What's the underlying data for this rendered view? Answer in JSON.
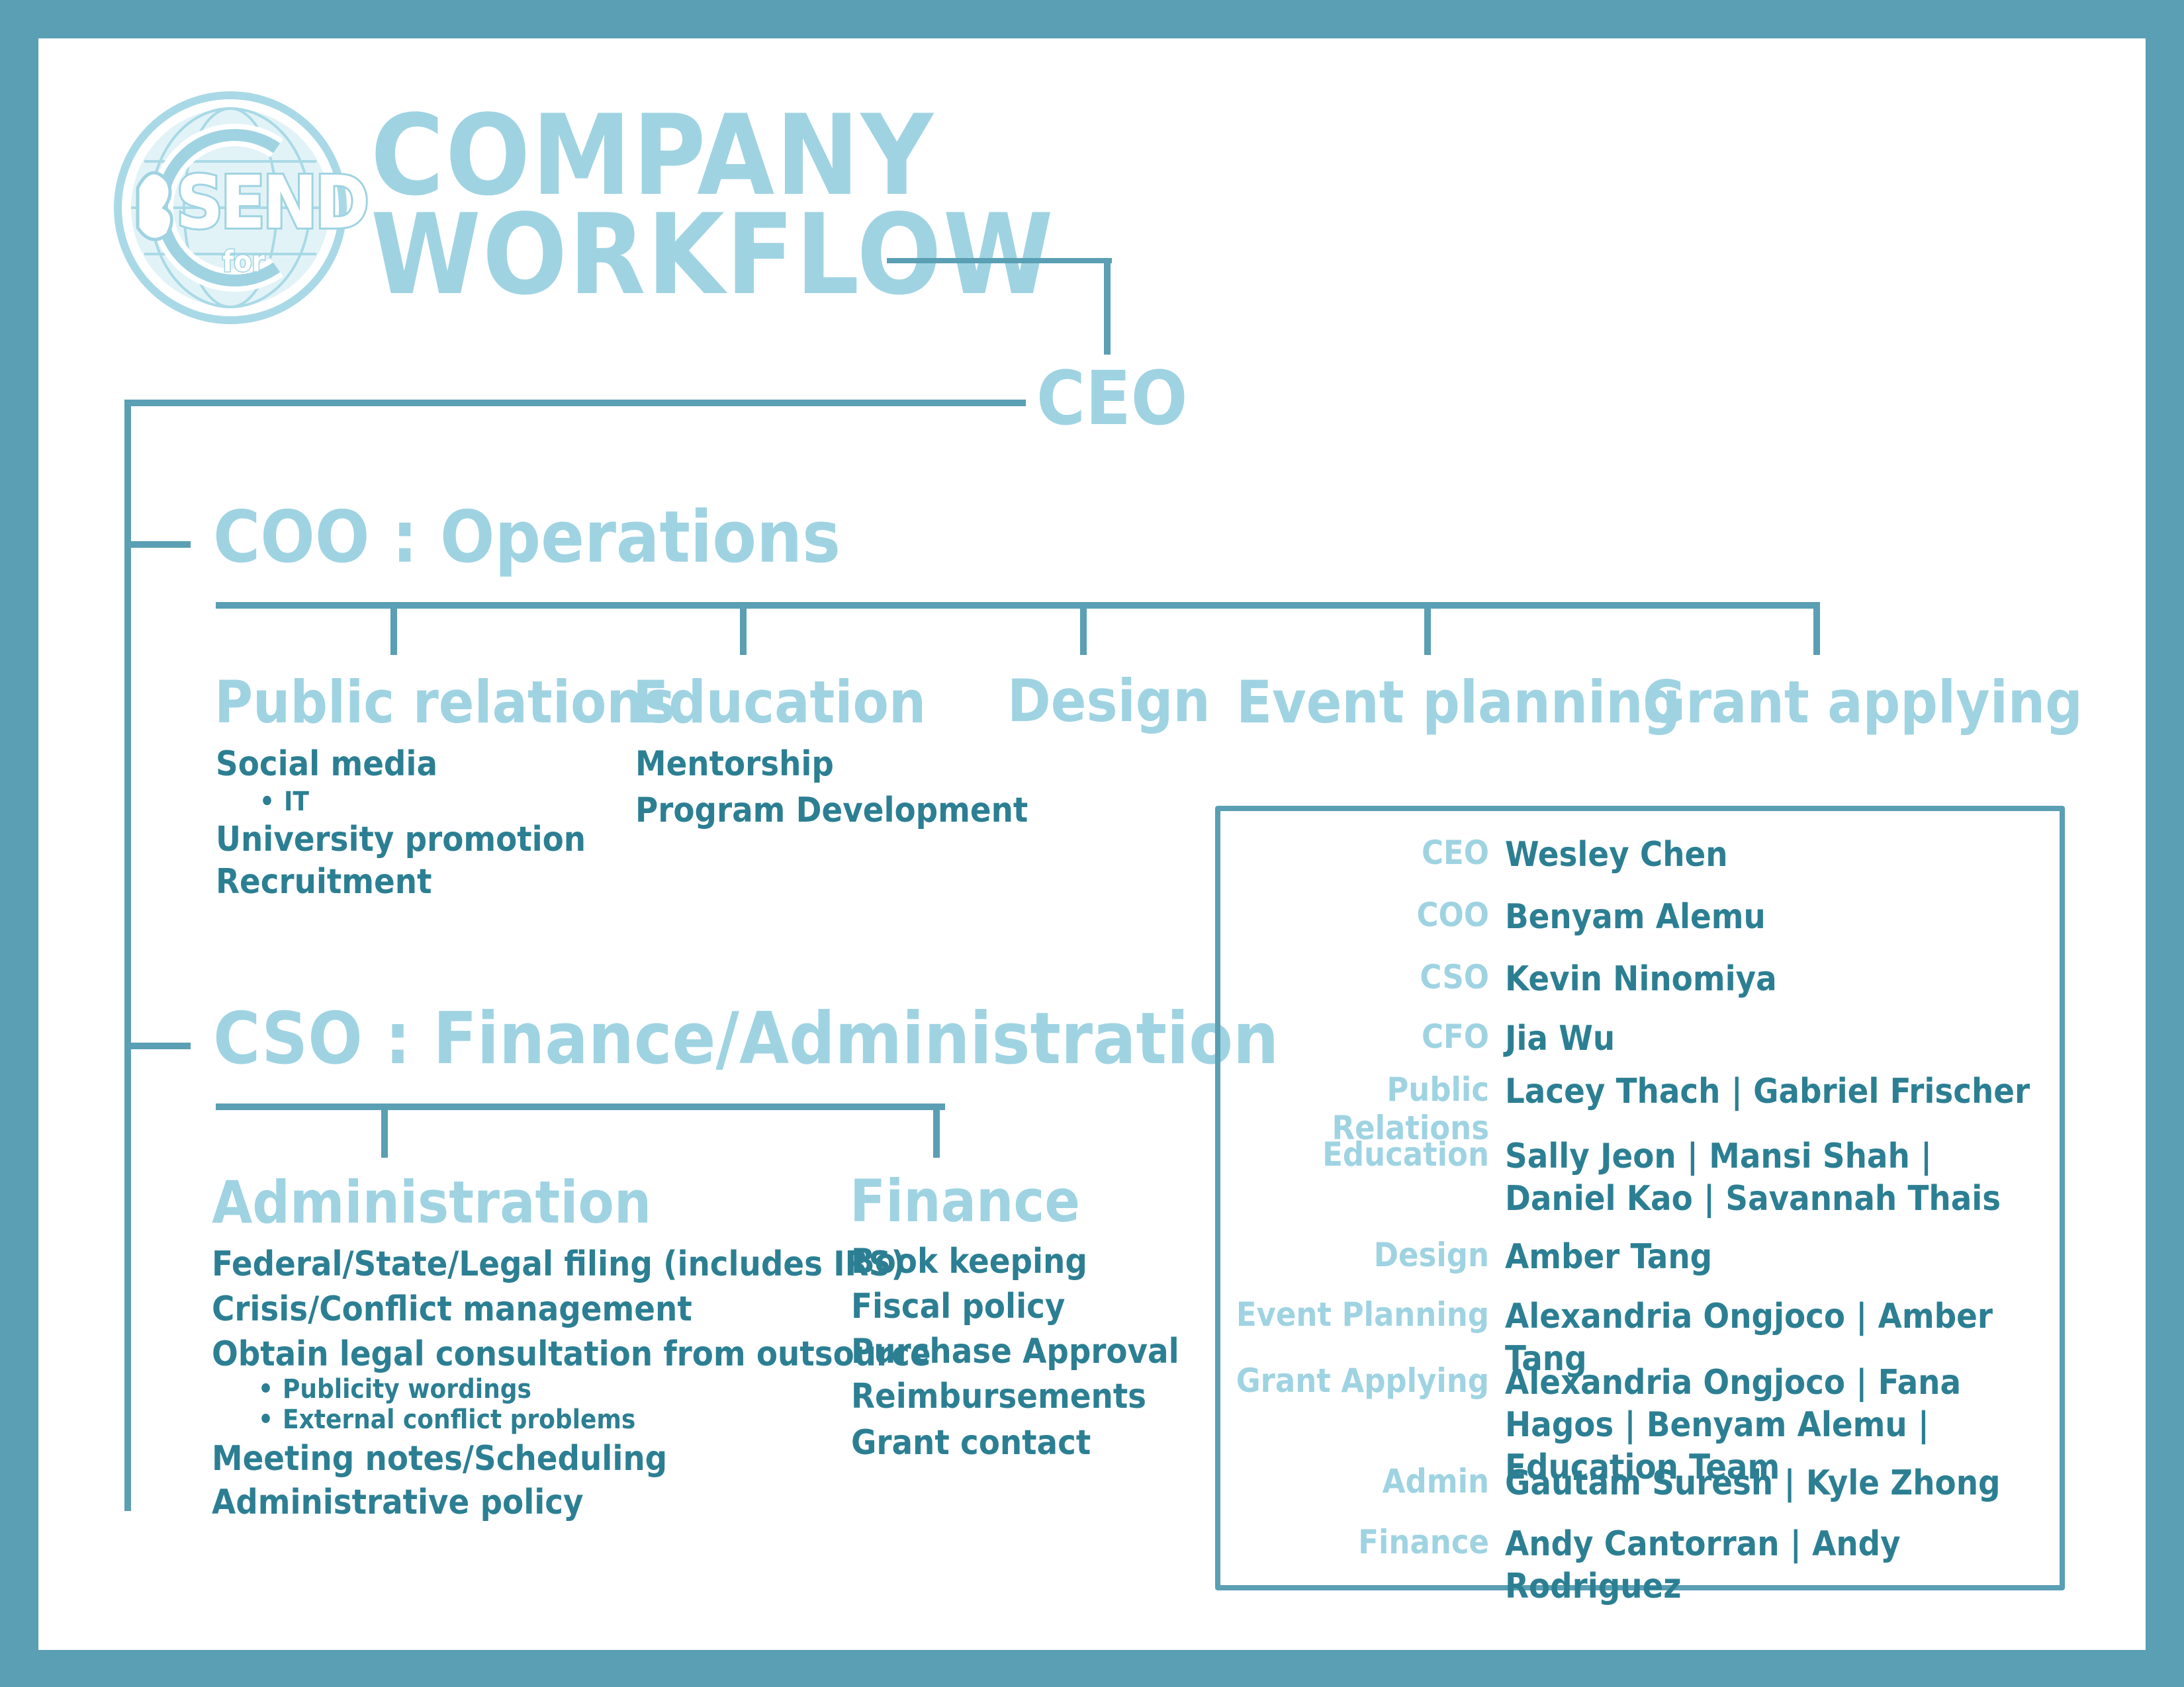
{
  "logo": {
    "main": "SEND",
    "small": "for"
  },
  "title": {
    "line1": "COMPANY",
    "line2": "WORKFLOW"
  },
  "ceo": "CEO",
  "coo": {
    "heading": "COO : Operations",
    "departments": [
      {
        "name": "Public relations",
        "items": [
          "Social media",
          "IT",
          "University promotion",
          "Recruitment"
        ]
      },
      {
        "name": "Education",
        "items": [
          "Mentorship",
          "Program Development"
        ]
      },
      {
        "name": "Design",
        "items": []
      },
      {
        "name": "Event planning",
        "items": []
      },
      {
        "name": "Grant applying",
        "items": []
      }
    ]
  },
  "cso": {
    "heading": "CSO : Finance/Administration",
    "departments": [
      {
        "name": "Administration",
        "items": [
          "Federal/State/Legal filing (includes IRS)",
          "Crisis/Conflict management",
          "Obtain legal consultation from outsource",
          "Publicity wordings",
          "External conflict problems",
          "Meeting notes/Scheduling",
          "Administrative policy"
        ]
      },
      {
        "name": "Finance",
        "items": [
          "Book keeping",
          "Fiscal policy",
          "Purchase Approval",
          "Reimbursements",
          "Grant contact"
        ]
      }
    ]
  },
  "team": [
    {
      "role": "CEO",
      "names": "Wesley Chen"
    },
    {
      "role": "COO",
      "names": "Benyam Alemu"
    },
    {
      "role": "CSO",
      "names": "Kevin Ninomiya"
    },
    {
      "role": "CFO",
      "names": "Jia Wu"
    },
    {
      "role": "Public Relations",
      "names": "Lacey Thach | Gabriel Frischer"
    },
    {
      "role": "Education",
      "names": "Sally Jeon | Mansi Shah | Daniel Kao | Savannah Thais"
    },
    {
      "role": "Design",
      "names": "Amber Tang"
    },
    {
      "role": "Event Planning",
      "names": "Alexandria Ongjoco | Amber Tang"
    },
    {
      "role": "Grant Applying",
      "names": "Alexandria Ongjoco | Fana Hagos | Benyam Alemu | Education Team"
    },
    {
      "role": "Admin",
      "names": "Gautam Suresh | Kyle Zhong"
    },
    {
      "role": "Finance",
      "names": "Andy Cantorran | Andy Rodriguez"
    }
  ],
  "colors": {
    "frame": "#5a9fb3",
    "light_text": "#9fd3e2",
    "dark_text": "#2c7f93"
  }
}
